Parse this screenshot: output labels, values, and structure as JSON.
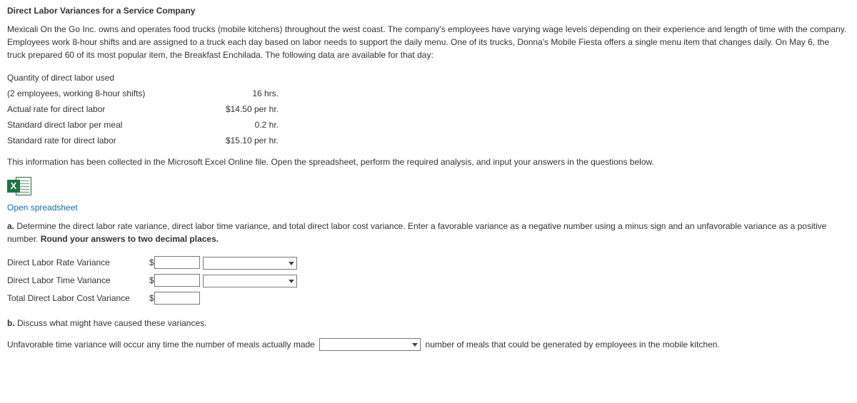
{
  "title": "Direct Labor Variances for a Service Company",
  "intro": "Mexicali On the Go Inc. owns and operates food trucks (mobile kitchens) throughout the west coast. The company's employees have varying wage levels depending on their experience and length of time with the company. Employees work 8-hour shifts and are assigned to a truck each day based on labor needs to support the daily menu. One of its trucks, Donna's Mobile Fiesta offers a single menu item that changes daily. On May 6, the truck prepared 60 of its most popular item, the Breakfast Enchilada. The following data are available for that day:",
  "rows": {
    "r1_label": "Quantity of direct labor used",
    "r1_sub": "(2 employees, working 8-hour shifts)",
    "r1_val": "16 hrs.",
    "r2_label": "Actual rate for direct labor",
    "r2_val": "$14.50 per hr.",
    "r3_label": "Standard direct labor per meal",
    "r3_val": "0.2 hr.",
    "r4_label": "Standard rate for direct labor",
    "r4_val": "$15.10 per hr."
  },
  "excel_note": "This information has been collected in the Microsoft Excel Online file. Open the spreadsheet, perform the required analysis, and input your answers in the questions below.",
  "open_link": "Open spreadsheet",
  "qa": {
    "prefix_a": "a.",
    "text_a_1": " Determine the direct labor rate variance, direct labor time variance, and total direct labor cost variance. Enter a favorable variance as a negative number using a minus sign and an unfavorable variance as a positive number. ",
    "bold_a": "Round your answers to two decimal places.",
    "row1": "Direct Labor Rate Variance",
    "row2": "Direct Labor Time Variance",
    "row3": "Total Direct Labor Cost Variance",
    "prefix_b": "b.",
    "text_b": " Discuss what might have caused these variances.",
    "sentence_b_1": "Unfavorable time variance will occur any time the number of meals actually made ",
    "sentence_b_2": " number of meals that could be generated by employees in the mobile kitchen."
  },
  "symbols": {
    "dollar": "$"
  }
}
